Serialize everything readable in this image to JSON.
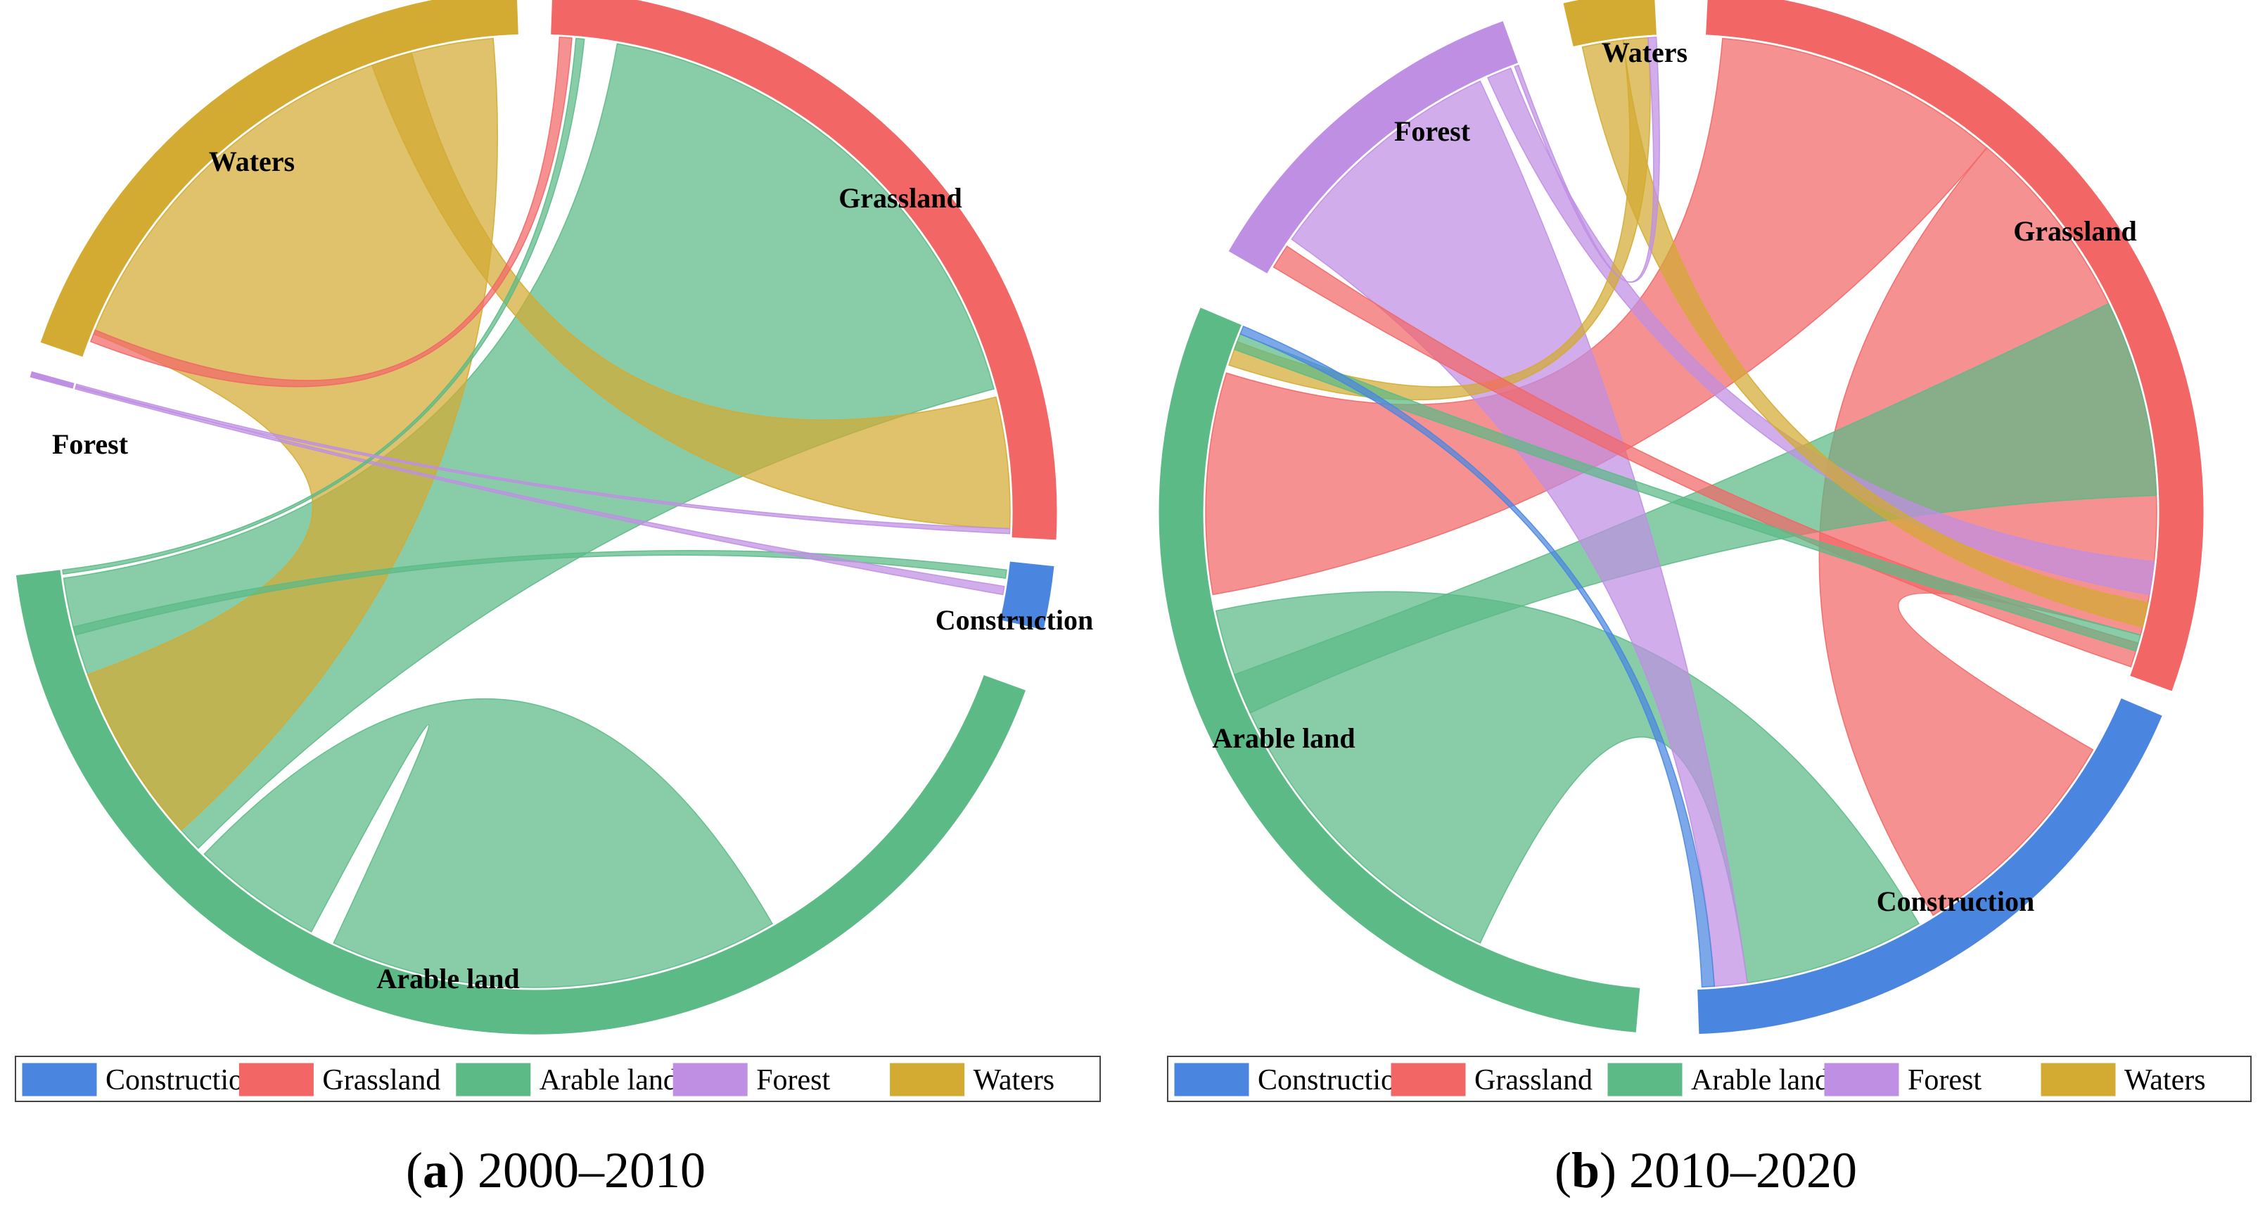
{
  "chart_data": [
    {
      "type": "chord",
      "panel_letter": "a",
      "caption": "2000–2010",
      "legend": [
        "Construction",
        "Grassland",
        "Arable land",
        "Forest",
        "Waters"
      ],
      "segments": [
        {
          "name": "Grassland",
          "label": "Grassland",
          "color": "#f26666",
          "start_deg": 2,
          "end_deg": 93
        },
        {
          "name": "Construction",
          "label": "Construction",
          "color": "#4a86e0",
          "start_deg": 96,
          "end_deg": 103
        },
        {
          "name": "Arable land",
          "label": "Arable land",
          "color": "#5cba87",
          "start_deg": 110,
          "end_deg": 263
        },
        {
          "name": "Forest",
          "label": "Forest",
          "color": "#bf8fe3",
          "start_deg": 285,
          "end_deg": 285.6
        },
        {
          "name": "Waters",
          "label": "Waters",
          "color": "#d3ab32",
          "start_deg": 289,
          "end_deg": 358
        }
      ],
      "flows": [
        {
          "from": "Arable land",
          "to": "Grassland",
          "a": [
            225,
            262
          ],
          "b": [
            10,
            75
          ]
        },
        {
          "from": "Arable land",
          "to": "Arable land",
          "a": [
            150,
            205
          ],
          "b": [
            208,
            224
          ]
        },
        {
          "from": "Waters",
          "to": "Arable land",
          "a": [
            292,
            355
          ],
          "b": [
            228,
            250
          ]
        },
        {
          "from": "Waters",
          "to": "Grassland",
          "a": [
            340,
            345
          ],
          "b": [
            76,
            92
          ]
        },
        {
          "from": "Grassland",
          "to": "Waters",
          "a": [
            3,
            4.5
          ],
          "b": [
            291,
            292.5
          ]
        },
        {
          "from": "Arable land",
          "to": "Construction",
          "a": [
            255,
            256
          ],
          "b": [
            97,
            98
          ]
        },
        {
          "from": "Forest",
          "to": "Construction",
          "a": [
            285,
            285.4
          ],
          "b": [
            99,
            100
          ]
        },
        {
          "from": "Arable land",
          "to": "Grassland",
          "a": [
            262.5,
            263
          ],
          "b": [
            5,
            6
          ]
        },
        {
          "from": "Forest",
          "to": "Grassland",
          "a": [
            285.2,
            285.6
          ],
          "b": [
            92,
            92.6
          ]
        }
      ]
    },
    {
      "type": "chord",
      "panel_letter": "b",
      "caption": "2010–2020",
      "legend": [
        "Construction",
        "Grassland",
        "Arable land",
        "Forest",
        "Waters"
      ],
      "segments": [
        {
          "name": "Grassland",
          "label": "Grassland",
          "color": "#f26666",
          "start_deg": 3,
          "end_deg": 110
        },
        {
          "name": "Construction",
          "label": "Construction",
          "color": "#4a86e0",
          "start_deg": 113,
          "end_deg": 178
        },
        {
          "name": "Arable land",
          "label": "Arable land",
          "color": "#5cba87",
          "start_deg": 185,
          "end_deg": 293
        },
        {
          "name": "Forest",
          "label": "Forest",
          "color": "#bf8fe3",
          "start_deg": 300,
          "end_deg": 340
        },
        {
          "name": "Waters",
          "label": "Waters",
          "color": "#d3ab32",
          "start_deg": 347,
          "end_deg": 357
        }
      ],
      "flows": [
        {
          "from": "Grassland",
          "to": "Arable land",
          "a": [
            5,
            40
          ],
          "b": [
            260,
            287
          ]
        },
        {
          "from": "Grassland",
          "to": "Construction",
          "a": [
            40,
            105
          ],
          "b": [
            120,
            148
          ]
        },
        {
          "from": "Arable land",
          "to": "Construction",
          "a": [
            205,
            258
          ],
          "b": [
            150,
            172
          ]
        },
        {
          "from": "Arable land",
          "to": "Grassland",
          "a": [
            245,
            250
          ],
          "b": [
            64,
            88
          ]
        },
        {
          "from": "Forest",
          "to": "Construction",
          "a": [
            305,
            335
          ],
          "b": [
            172,
            176
          ]
        },
        {
          "from": "Forest",
          "to": "Grassland",
          "a": [
            336,
            339
          ],
          "b": [
            96,
            100
          ]
        },
        {
          "from": "Waters",
          "to": "Grassland",
          "a": [
            348,
            353
          ],
          "b": [
            101,
            104
          ]
        },
        {
          "from": "Waters",
          "to": "Arable land",
          "a": [
            353,
            356
          ],
          "b": [
            288,
            291
          ]
        },
        {
          "from": "Grassland",
          "to": "Forest",
          "a": [
            106,
            109
          ],
          "b": [
            301,
            304
          ]
        },
        {
          "from": "Arable land",
          "to": "Grassland",
          "a": [
            290,
            292
          ],
          "b": [
            105,
            107
          ]
        },
        {
          "from": "Forest",
          "to": "Waters",
          "a": [
            339.5,
            340
          ],
          "b": [
            356,
            357
          ]
        },
        {
          "from": "Construction",
          "to": "Arable land",
          "a": [
            176,
            177.5
          ],
          "b": [
            292,
            293
          ]
        }
      ]
    }
  ]
}
